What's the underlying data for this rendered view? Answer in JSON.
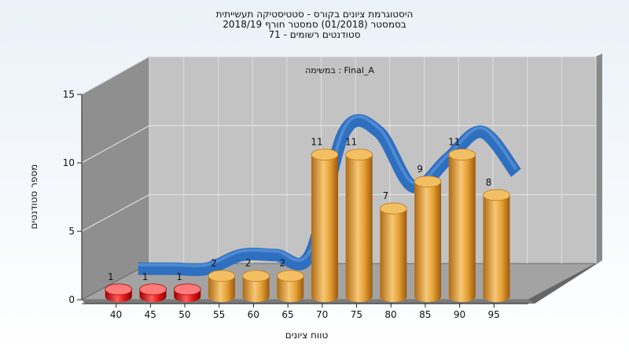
{
  "title_lines": [
    "היסטוגרמת ציונים בקורס - סטטיסטיקה תעשייתית",
    "בסמסטר  (01/2018)  סמסטר חורף 2018/19",
    "סטודנטים רשומים - 71"
  ],
  "chart_data": {
    "type": "bar",
    "annotation": "במשימה : Final_A",
    "xlabel": "טווח ציונים",
    "ylabel": "מספר סטודנטים",
    "x_tick_labels": [
      "40",
      "45",
      "50",
      "55",
      "60",
      "65",
      "70",
      "75",
      "80",
      "85",
      "90",
      "95"
    ],
    "categories": [
      "40-45",
      "45-50",
      "50-55",
      "55-60",
      "60-65",
      "65-70",
      "70-75",
      "75-80",
      "80-85",
      "85-90",
      "90-95",
      "95-100"
    ],
    "values": [
      1,
      1,
      1,
      2,
      2,
      2,
      11,
      11,
      7,
      9,
      11,
      8
    ],
    "y_ticks": [
      0,
      5,
      10,
      15
    ],
    "ylim": [
      0,
      15
    ],
    "grid": true,
    "style": "3d-cylinder",
    "bar_colors": {
      "fail": "#dd1010",
      "pass": "#e8a33c"
    },
    "fail_threshold": 55,
    "trend_color": "#2f6fbf"
  }
}
